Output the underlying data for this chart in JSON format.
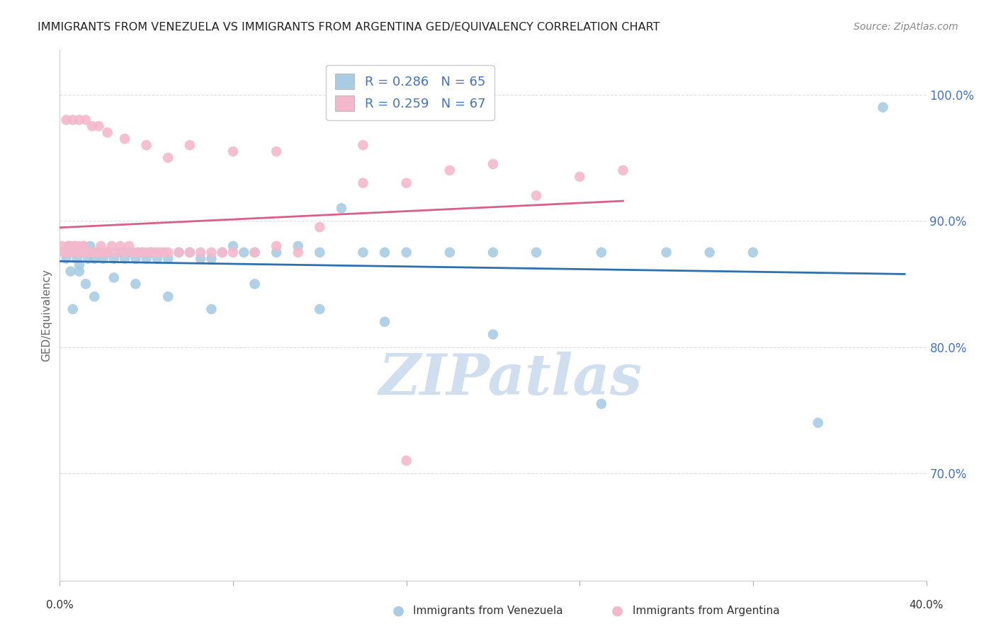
{
  "title": "IMMIGRANTS FROM VENEZUELA VS IMMIGRANTS FROM ARGENTINA GED/EQUIVALENCY CORRELATION CHART",
  "source": "Source: ZipAtlas.com",
  "ylabel": "GED/Equivalency",
  "ytick_labels": [
    "100.0%",
    "90.0%",
    "80.0%",
    "70.0%"
  ],
  "ytick_values": [
    1.0,
    0.9,
    0.8,
    0.7
  ],
  "xlim": [
    0.0,
    0.4
  ],
  "ylim": [
    0.615,
    1.035
  ],
  "R_venezuela": 0.286,
  "N_venezuela": 65,
  "R_argentina": 0.259,
  "N_argentina": 67,
  "color_venezuela": "#a8cce4",
  "color_argentina": "#f4b8cc",
  "trendline_color_venezuela": "#2e6fad",
  "trendline_color_argentina": "#d95f8a",
  "watermark_text": "ZIPatlas",
  "watermark_color": "#d0dff0",
  "background_color": "#ffffff",
  "grid_color": "#dddddd",
  "title_fontsize": 11.5,
  "ytick_color": "#4472c4",
  "legend_R_N_color": "#4472c4",
  "venezuela_x": [
    0.002,
    0.003,
    0.004,
    0.005,
    0.006,
    0.007,
    0.008,
    0.009,
    0.01,
    0.011,
    0.012,
    0.013,
    0.014,
    0.015,
    0.016,
    0.018,
    0.02,
    0.022,
    0.025,
    0.028,
    0.03,
    0.032,
    0.035,
    0.038,
    0.04,
    0.042,
    0.045,
    0.05,
    0.055,
    0.06,
    0.065,
    0.07,
    0.075,
    0.08,
    0.085,
    0.09,
    0.1,
    0.11,
    0.12,
    0.13,
    0.14,
    0.15,
    0.16,
    0.18,
    0.2,
    0.22,
    0.25,
    0.28,
    0.3,
    0.32,
    0.006,
    0.009,
    0.012,
    0.016,
    0.025,
    0.035,
    0.05,
    0.07,
    0.09,
    0.12,
    0.15,
    0.2,
    0.25,
    0.35,
    0.38
  ],
  "venezuela_y": [
    0.875,
    0.87,
    0.88,
    0.86,
    0.875,
    0.88,
    0.87,
    0.865,
    0.875,
    0.88,
    0.875,
    0.87,
    0.88,
    0.875,
    0.87,
    0.875,
    0.87,
    0.875,
    0.87,
    0.875,
    0.87,
    0.875,
    0.87,
    0.875,
    0.87,
    0.875,
    0.87,
    0.87,
    0.875,
    0.875,
    0.87,
    0.87,
    0.875,
    0.88,
    0.875,
    0.875,
    0.875,
    0.88,
    0.875,
    0.91,
    0.875,
    0.875,
    0.875,
    0.875,
    0.875,
    0.875,
    0.875,
    0.875,
    0.875,
    0.875,
    0.83,
    0.86,
    0.85,
    0.84,
    0.855,
    0.85,
    0.84,
    0.83,
    0.85,
    0.83,
    0.82,
    0.81,
    0.755,
    0.74,
    0.99
  ],
  "argentina_x": [
    0.001,
    0.002,
    0.003,
    0.004,
    0.005,
    0.006,
    0.007,
    0.008,
    0.009,
    0.01,
    0.011,
    0.012,
    0.013,
    0.014,
    0.015,
    0.016,
    0.017,
    0.018,
    0.019,
    0.02,
    0.022,
    0.024,
    0.026,
    0.028,
    0.03,
    0.032,
    0.034,
    0.036,
    0.038,
    0.04,
    0.042,
    0.044,
    0.046,
    0.048,
    0.05,
    0.055,
    0.06,
    0.065,
    0.07,
    0.075,
    0.08,
    0.09,
    0.1,
    0.11,
    0.12,
    0.14,
    0.16,
    0.18,
    0.22,
    0.26,
    0.003,
    0.006,
    0.009,
    0.012,
    0.015,
    0.018,
    0.022,
    0.03,
    0.04,
    0.05,
    0.06,
    0.08,
    0.1,
    0.14,
    0.2,
    0.24,
    0.16
  ],
  "argentina_y": [
    0.88,
    0.875,
    0.875,
    0.88,
    0.88,
    0.875,
    0.88,
    0.875,
    0.88,
    0.875,
    0.88,
    0.875,
    0.875,
    0.875,
    0.875,
    0.875,
    0.875,
    0.875,
    0.88,
    0.875,
    0.875,
    0.88,
    0.875,
    0.88,
    0.875,
    0.88,
    0.875,
    0.875,
    0.875,
    0.875,
    0.875,
    0.875,
    0.875,
    0.875,
    0.875,
    0.875,
    0.875,
    0.875,
    0.875,
    0.875,
    0.875,
    0.875,
    0.88,
    0.875,
    0.895,
    0.93,
    0.93,
    0.94,
    0.92,
    0.94,
    0.98,
    0.98,
    0.98,
    0.98,
    0.975,
    0.975,
    0.97,
    0.965,
    0.96,
    0.95,
    0.96,
    0.955,
    0.955,
    0.96,
    0.945,
    0.935,
    0.71
  ]
}
